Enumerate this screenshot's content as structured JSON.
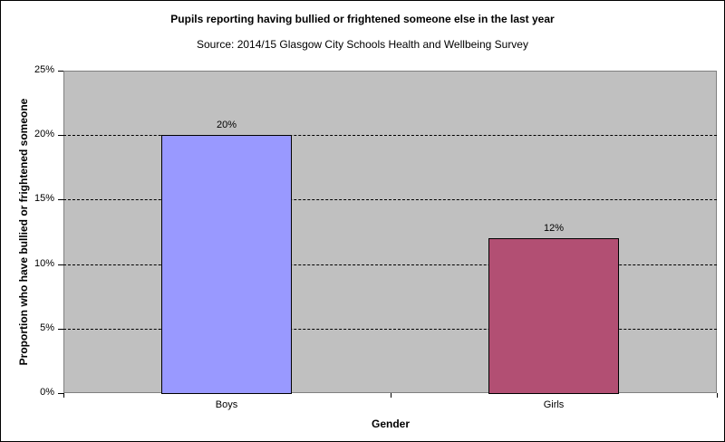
{
  "chart_data": {
    "type": "bar",
    "title": "Pupils reporting having bullied or frightened someone else in the last year",
    "subtitle": "Source: 2014/15 Glasgow City Schools Health and Wellbeing Survey",
    "categories": [
      "Boys",
      "Girls"
    ],
    "values": [
      20,
      12
    ],
    "data_labels": [
      "20%",
      "12%"
    ],
    "colors": [
      "#9999ff",
      "#b24f73"
    ],
    "xlabel": "Gender",
    "ylabel": "Proportion who have bullied or frightened someone",
    "ylim": [
      0,
      25
    ],
    "yticks": [
      "0%",
      "5%",
      "10%",
      "15%",
      "20%",
      "25%"
    ],
    "grid": true,
    "legend": null,
    "plot_background": "#c0c0c0"
  }
}
